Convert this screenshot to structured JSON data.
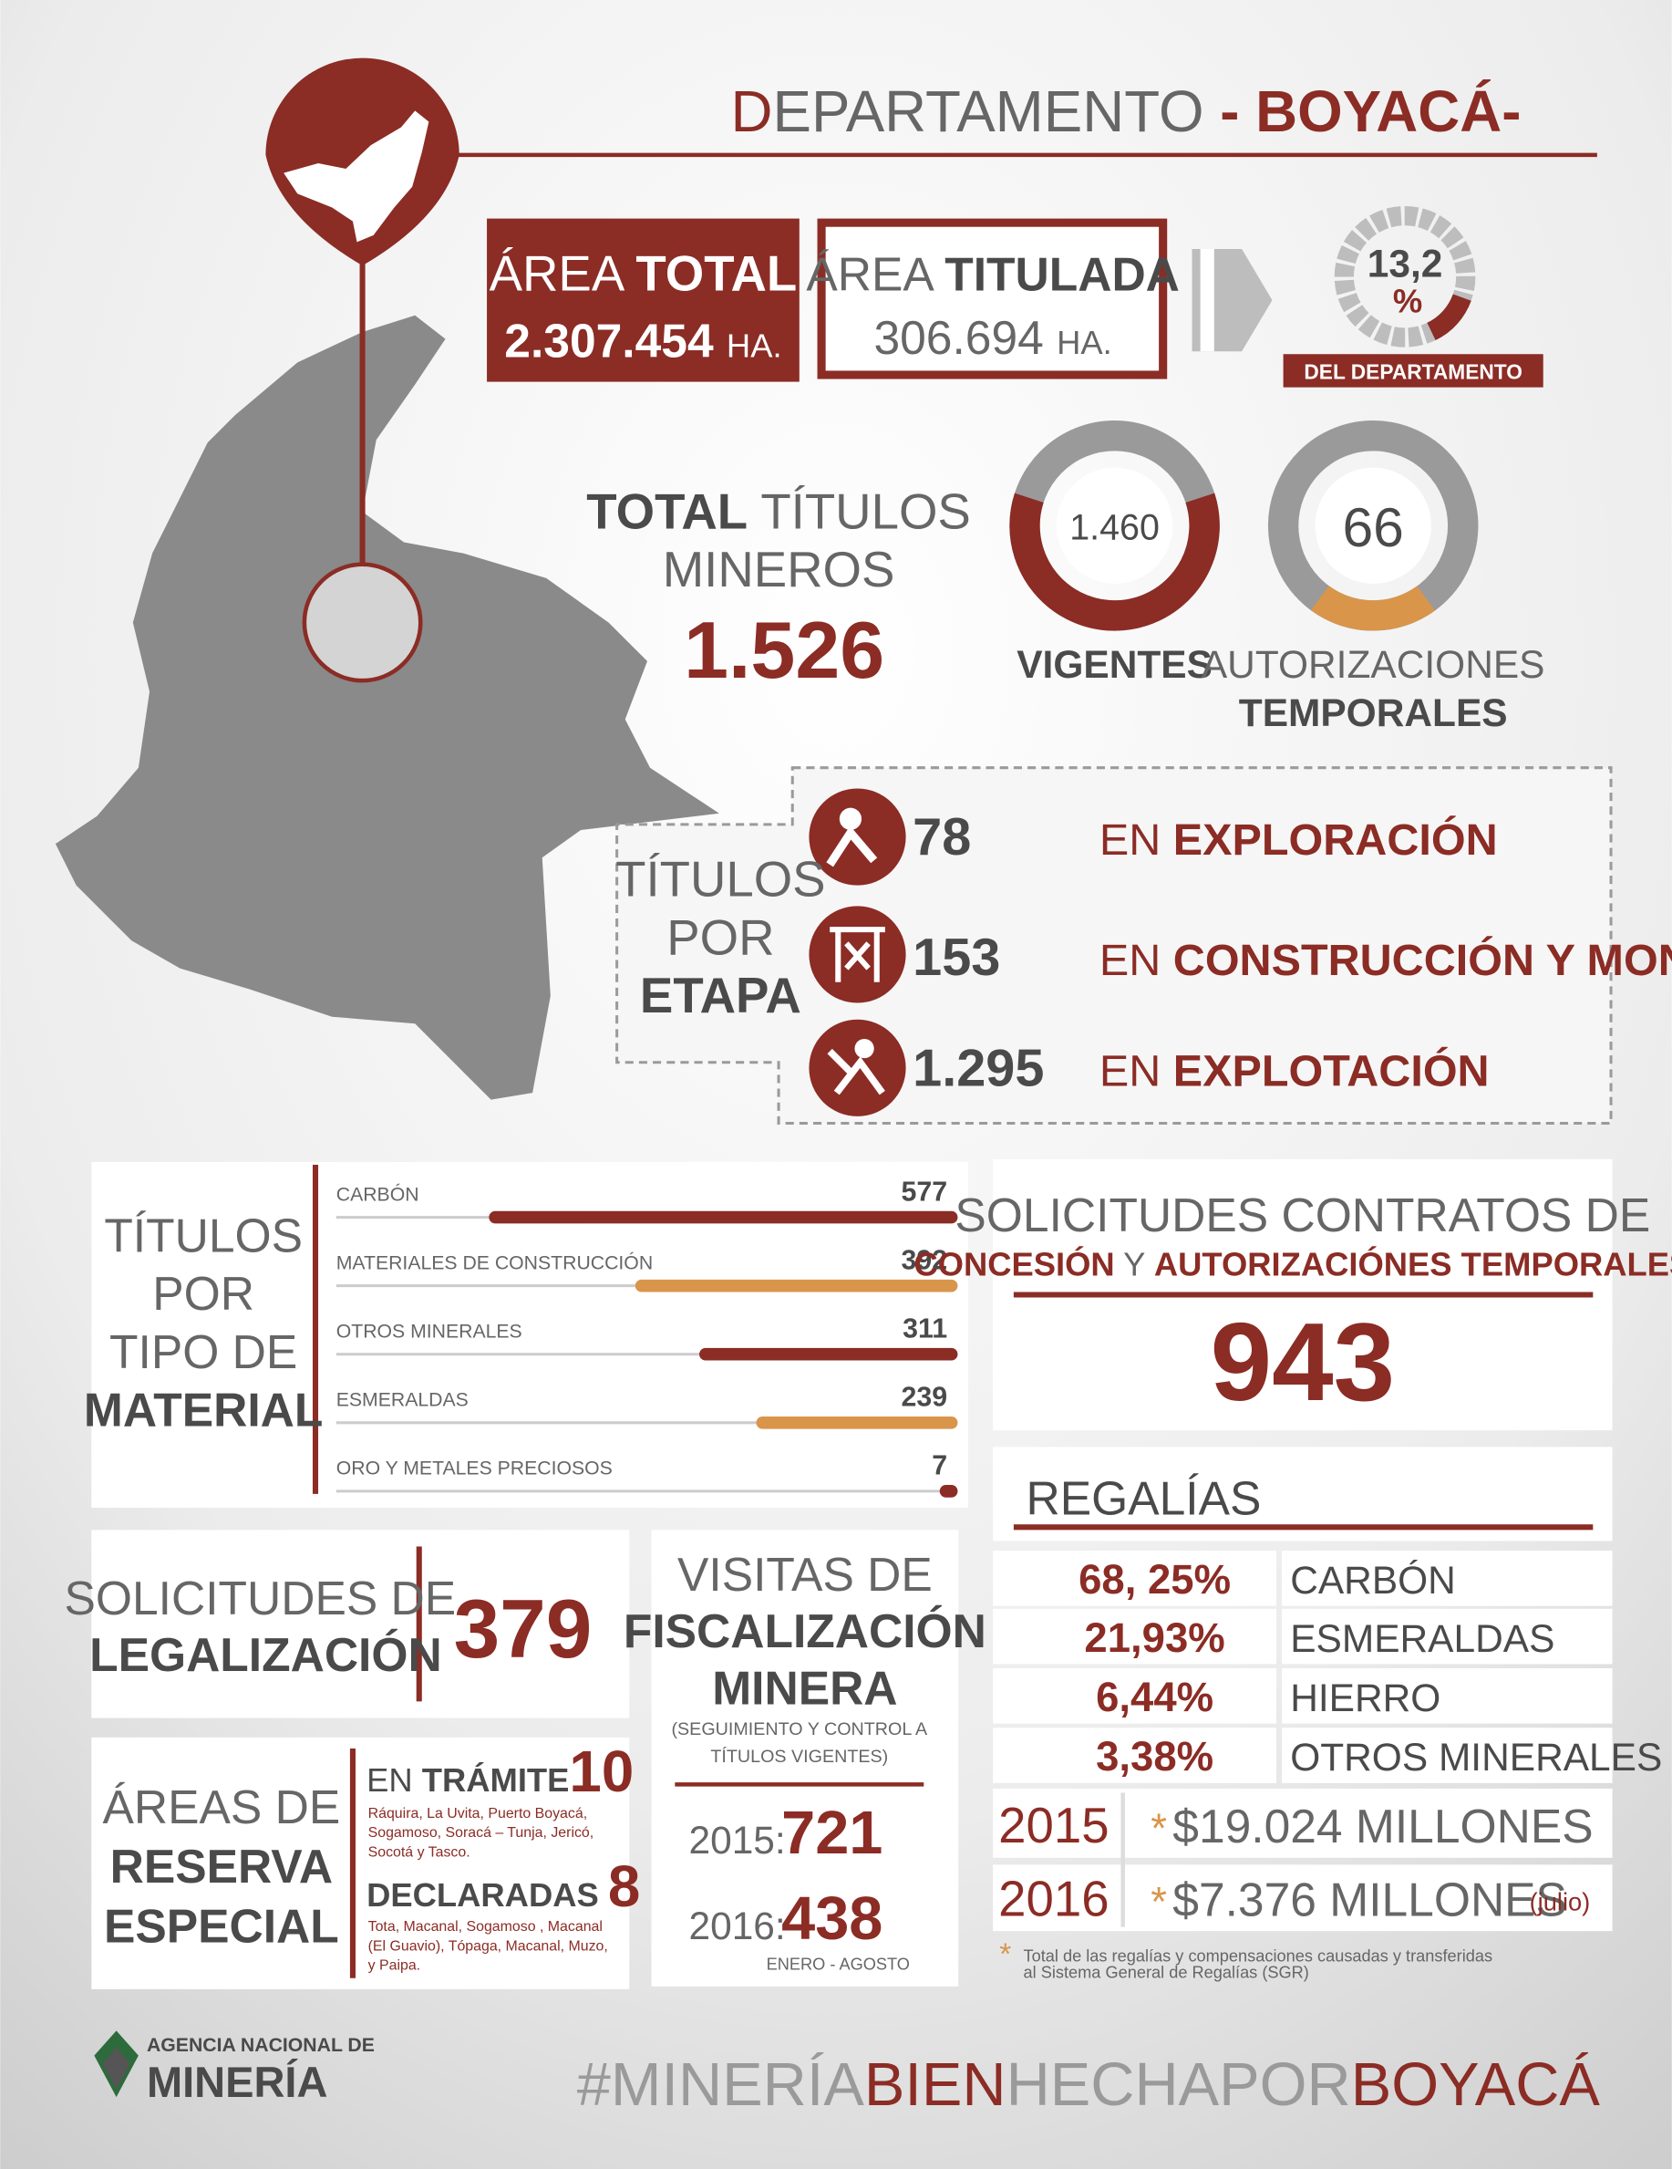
{
  "header": {
    "title_first": "D",
    "title_rest": "EPARTAMENTO",
    "title_dept": " - BOYACÁ-"
  },
  "area_total": {
    "label_light": "ÁREA",
    "label_bold": "TOTAL",
    "value": "2.307.454",
    "unit": "HA."
  },
  "area_titulada": {
    "label_light": "ÁREA",
    "label_bold": "TITULADA",
    "value": "306.694",
    "unit": "HA."
  },
  "percent": {
    "value": "13,2",
    "unit": "%",
    "caption": "DEL DEPARTAMENTO"
  },
  "total_titulos": {
    "label_bold": "TOTAL",
    "label_light": "TÍTULOS",
    "label_line2": "MINEROS",
    "value": "1.526"
  },
  "vigentes": {
    "value": "1.460",
    "label": "VIGENTES"
  },
  "autorizaciones": {
    "value": "66",
    "label_line1": "AUTORIZACIONES",
    "label_line2": "TEMPORALES"
  },
  "etapa": {
    "title": [
      "TÍTULOS",
      "POR",
      "ETAPA"
    ],
    "items": [
      {
        "value": "78",
        "prefix": "EN",
        "label": "EXPLORACIÓN"
      },
      {
        "value": "153",
        "prefix": "EN",
        "label": "CONSTRUCCIÓN Y MONTAJE"
      },
      {
        "value": "1.295",
        "prefix": "EN",
        "label": "EXPLOTACIÓN"
      }
    ]
  },
  "material": {
    "title": [
      "TÍTULOS",
      "POR",
      "TIPO DE",
      "MATERIAL"
    ],
    "items": [
      {
        "name": "CARBÓN",
        "value": 577,
        "color": "#8b2c25"
      },
      {
        "name": "MATERIALES DE CONSTRUCCIÓN",
        "value": 392,
        "color": "#d9954a"
      },
      {
        "name": "OTROS MINERALES",
        "value": 311,
        "color": "#8b2c25"
      },
      {
        "name": "ESMERALDAS",
        "value": 239,
        "color": "#d9954a"
      },
      {
        "name": "ORO Y METALES PRECIOSOS",
        "value": 7,
        "color": "#8b2c25"
      }
    ]
  },
  "solicitudes_contratos": {
    "line1": "SOLICITUDES CONTRATOS DE",
    "line2_a": "CONCESIÓN",
    "line2_b": " Y ",
    "line2_c": "AUTORIZACIÓNES TEMPORALES",
    "value": "943"
  },
  "legalizacion": {
    "line1": "SOLICITUDES DE",
    "line2": "LEGALIZACIÓN",
    "value": "379"
  },
  "reserva": {
    "title": [
      "ÁREAS DE",
      "RESERVA",
      "ESPECIAL"
    ],
    "tramite": {
      "prefix": "EN ",
      "label": "TRÁMITE",
      "value": "10",
      "places": [
        "Ráquira, La Uvita, Puerto Boyacá,",
        "Sogamoso, Soracá – Tunja, Jericó,",
        "Socotá y Tasco."
      ]
    },
    "declaradas": {
      "label": "DECLARADAS",
      "value": "8",
      "places": [
        "Tota, Macanal, Sogamoso , Macanal",
        "(El Guavio), Tópaga, Macanal, Muzo,",
        "y Paipa."
      ]
    }
  },
  "visitas": {
    "title": [
      "VISITAS DE",
      "FISCALIZACIÓN",
      "MINERA"
    ],
    "note": [
      "(SEGUIMIENTO Y CONTROL A",
      "TÍTULOS VIGENTES)"
    ],
    "rows": [
      {
        "year": "2015:",
        "value": "721"
      },
      {
        "year": "2016:",
        "value": "438",
        "note": "ENERO - AGOSTO"
      }
    ]
  },
  "regalias": {
    "title": "REGALÍAS",
    "shares": [
      {
        "value": "68, 25%",
        "mineral": "CARBÓN"
      },
      {
        "value": "21,93%",
        "mineral": "ESMERALDAS"
      },
      {
        "value": "6,44%",
        "mineral": "HIERRO"
      },
      {
        "value": "3,38%",
        "mineral": "OTROS MINERALES"
      }
    ],
    "years": [
      {
        "year": "2015",
        "mark": "*",
        "amount": "$19.024 MILLONES"
      },
      {
        "year": "2016",
        "mark": "*",
        "amount": "$7.376 MILLONES",
        "note": "(julio)"
      }
    ],
    "footnote_mark": "*",
    "footnote": [
      "Total de las regalías y compensaciones causadas y transferidas",
      "al Sistema General de Regalías (SGR)"
    ]
  },
  "footer": {
    "logo_line1": "AGENCIA NACIONAL DE",
    "logo_line2": "MINERÍA",
    "hashtag_a": "#MINERÍA",
    "hashtag_b": "BIEN",
    "hashtag_c": "HECHAPOR",
    "hashtag_d": "BOYACÁ"
  }
}
